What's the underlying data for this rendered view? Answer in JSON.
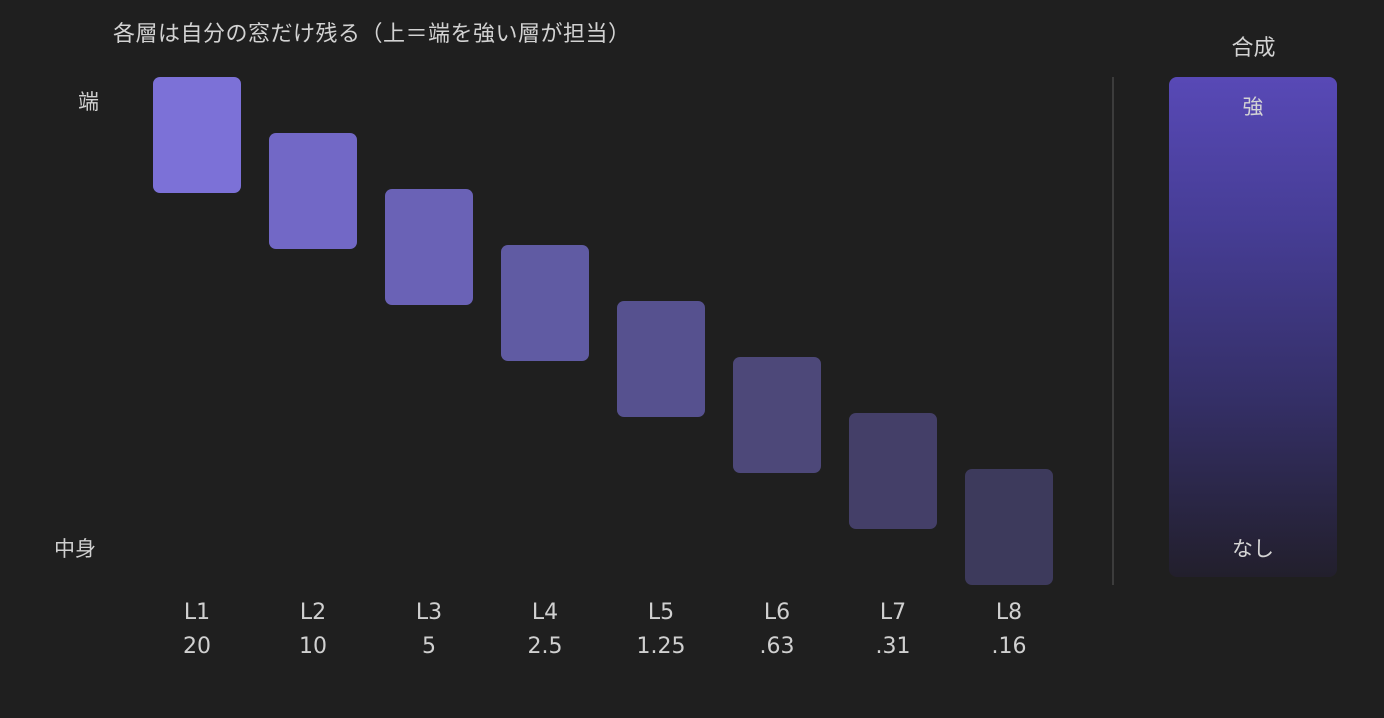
{
  "title": "各層は自分の窓だけ残る（上＝端を強い層が担当）",
  "axis": {
    "top": "端",
    "bottom": "中身"
  },
  "layers": [
    {
      "name": "L1",
      "value": "20",
      "color": "#7c71d7"
    },
    {
      "name": "L2",
      "value": "10",
      "color": "#7268c6"
    },
    {
      "name": "L3",
      "value": "5",
      "color": "#6a62b6"
    },
    {
      "name": "L4",
      "value": "2.5",
      "color": "#605ba3"
    },
    {
      "name": "L5",
      "value": "1.25",
      "color": "#56518f"
    },
    {
      "name": "L6",
      "value": ".63",
      "color": "#4d4879"
    },
    {
      "name": "L7",
      "value": ".31",
      "color": "#443f68"
    },
    {
      "name": "L8",
      "value": ".16",
      "color": "#3d3a5c"
    }
  ],
  "composite": {
    "title": "合成",
    "top_label": "強",
    "bottom_label": "なし"
  }
}
